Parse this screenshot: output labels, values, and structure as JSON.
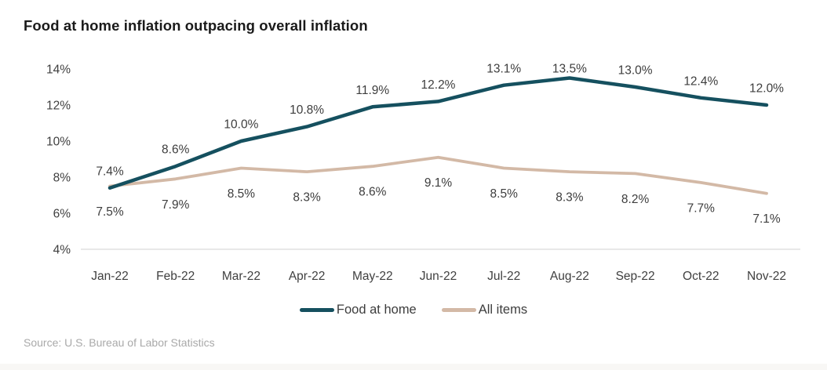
{
  "title": "Food at home inflation outpacing overall inflation",
  "source": "Source: U.S. Bureau of Labor Statistics",
  "theme": {
    "food_at_home_color": "#15505f",
    "all_items_color": "#d3b9a6",
    "axis_line_color": "#d9d9d9",
    "label_color": "#3d3d3d",
    "tick_color": "#404040",
    "title_color": "#1a1a1a",
    "source_color": "#a9a9a9"
  },
  "chart_data": {
    "type": "line",
    "title": "Food at home inflation outpacing overall inflation",
    "xlabel": "",
    "ylabel": "",
    "categories": [
      "Jan-22",
      "Feb-22",
      "Mar-22",
      "Apr-22",
      "May-22",
      "Jun-22",
      "Jul-22",
      "Aug-22",
      "Sep-22",
      "Oct-22",
      "Nov-22"
    ],
    "series": [
      {
        "name": "Food at home",
        "color": "#15505f",
        "stroke_width": 4.5,
        "label_position": "above",
        "values": [
          7.4,
          8.6,
          10.0,
          10.8,
          11.9,
          12.2,
          13.1,
          13.5,
          13.0,
          12.4,
          12.0
        ]
      },
      {
        "name": "All items",
        "color": "#d3b9a6",
        "stroke_width": 3.8,
        "label_position": "below",
        "values": [
          7.5,
          7.9,
          8.5,
          8.3,
          8.6,
          9.1,
          8.5,
          8.3,
          8.2,
          7.7,
          7.1
        ]
      }
    ],
    "yticks": [
      14,
      12,
      10,
      8,
      6,
      4
    ],
    "ytick_format": "{v}%",
    "data_label_format": "{v.1}%",
    "ylim": [
      4,
      15
    ],
    "grid": false,
    "legend_position": "bottom"
  }
}
